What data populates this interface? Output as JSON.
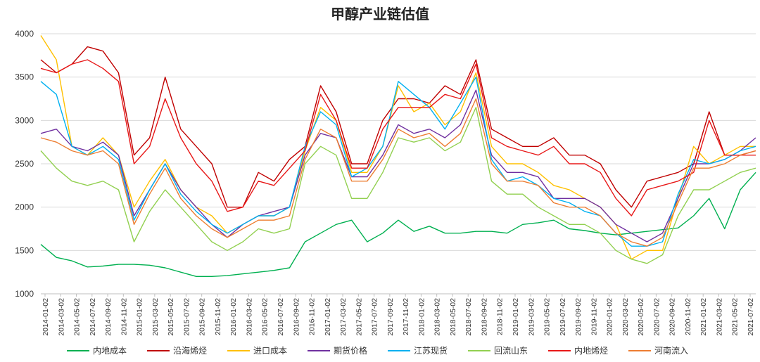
{
  "chart_data": {
    "type": "line",
    "title": "甲醇产业链估值",
    "xlabel": "",
    "ylabel": "",
    "ylim": [
      1000,
      4000
    ],
    "yticks": [
      1000,
      1500,
      2000,
      2500,
      3000,
      3500,
      4000
    ],
    "grid": "horizontal",
    "legend_position": "bottom",
    "xticks": [
      "2014-01-02",
      "2014-03-02",
      "2014-05-02",
      "2014-07-02",
      "2014-09-02",
      "2014-11-02",
      "2015-01-02",
      "2015-03-02",
      "2015-05-02",
      "2015-07-02",
      "2015-09-02",
      "2015-11-02",
      "2016-01-02",
      "2016-03-02",
      "2016-05-02",
      "2016-07-02",
      "2016-09-02",
      "2016-11-02",
      "2017-01-02",
      "2017-03-02",
      "2017-05-02",
      "2017-07-02",
      "2017-09-02",
      "2017-11-02",
      "2018-01-02",
      "2018-03-02",
      "2018-05-02",
      "2018-07-02",
      "2018-09-02",
      "2018-11-02",
      "2019-01-02",
      "2019-03-02",
      "2019-05-02",
      "2019-07-02",
      "2019-09-02",
      "2019-11-02",
      "2020-01-02",
      "2020-03-02",
      "2020-05-02",
      "2020-07-02",
      "2020-09-02",
      "2020-11-02",
      "2021-01-02",
      "2021-03-02",
      "2021-05-02",
      "2021-07-02"
    ],
    "x": [
      "2014-01",
      "2014-03",
      "2014-05",
      "2014-07",
      "2014-09",
      "2014-11",
      "2015-01",
      "2015-03",
      "2015-05",
      "2015-07",
      "2015-09",
      "2015-11",
      "2016-01",
      "2016-03",
      "2016-05",
      "2016-07",
      "2016-09",
      "2016-11",
      "2017-01",
      "2017-03",
      "2017-05",
      "2017-07",
      "2017-09",
      "2017-11",
      "2018-01",
      "2018-03",
      "2018-05",
      "2018-07",
      "2018-09",
      "2018-11",
      "2019-01",
      "2019-03",
      "2019-05",
      "2019-07",
      "2019-09",
      "2019-11",
      "2020-01",
      "2020-03",
      "2020-05",
      "2020-07",
      "2020-09",
      "2020-11",
      "2021-01",
      "2021-03",
      "2021-05",
      "2021-07",
      "2021-08"
    ],
    "series": [
      {
        "name": "内地成本",
        "color": "#00b050",
        "values": [
          1570,
          1420,
          1380,
          1310,
          1320,
          1340,
          1340,
          1330,
          1300,
          1250,
          1200,
          1200,
          1210,
          1230,
          1250,
          1270,
          1300,
          1600,
          1700,
          1800,
          1850,
          1600,
          1700,
          1850,
          1720,
          1780,
          1700,
          1700,
          1720,
          1720,
          1700,
          1800,
          1820,
          1850,
          1750,
          1730,
          1700,
          1680,
          1700,
          1720,
          1740,
          1760,
          1900,
          2100,
          1750,
          2200,
          2400
        ]
      },
      {
        "name": "沿海烯烃",
        "color": "#c00000",
        "values": [
          3700,
          3550,
          3650,
          3850,
          3800,
          3550,
          2600,
          2800,
          3500,
          2900,
          2700,
          2500,
          2000,
          2000,
          2400,
          2300,
          2550,
          2700,
          3400,
          3100,
          2500,
          2500,
          3000,
          3250,
          3250,
          3200,
          3400,
          3300,
          3700,
          2900,
          2800,
          2700,
          2700,
          2800,
          2600,
          2600,
          2500,
          2200,
          2000,
          2300,
          2350,
          2400,
          2500,
          3100,
          2600,
          2600,
          2650
        ]
      },
      {
        "name": "进口成本",
        "color": "#ffc000",
        "values": [
          3980,
          3700,
          2700,
          2600,
          2800,
          2600,
          2000,
          2300,
          2550,
          2200,
          2000,
          1900,
          1700,
          1800,
          1900,
          1900,
          2000,
          2650,
          3150,
          3000,
          2400,
          2400,
          2700,
          3400,
          3100,
          3200,
          2950,
          3100,
          3550,
          2700,
          2500,
          2500,
          2400,
          2250,
          2200,
          2100,
          2000,
          1800,
          1400,
          1500,
          1500,
          2100,
          2700,
          2500,
          2600,
          2700,
          2700
        ]
      },
      {
        "name": "期货价格",
        "color": "#7030a0",
        "values": [
          2850,
          2900,
          2700,
          2650,
          2750,
          2600,
          1900,
          2200,
          2500,
          2200,
          2000,
          1800,
          1650,
          1800,
          1900,
          1950,
          2000,
          2600,
          2850,
          2800,
          2350,
          2350,
          2600,
          2950,
          2850,
          2900,
          2800,
          2950,
          3350,
          2600,
          2400,
          2400,
          2350,
          2100,
          2100,
          2100,
          2000,
          1800,
          1700,
          1600,
          1700,
          2100,
          2500,
          2500,
          2550,
          2650,
          2800
        ]
      },
      {
        "name": "江苏现货",
        "color": "#00b0f0",
        "values": [
          3450,
          3300,
          2700,
          2600,
          2700,
          2550,
          1850,
          2200,
          2500,
          2150,
          1950,
          1800,
          1700,
          1800,
          1900,
          1900,
          2000,
          2700,
          3100,
          2950,
          2350,
          2450,
          2700,
          3450,
          3300,
          3150,
          2900,
          3200,
          3500,
          2550,
          2300,
          2350,
          2250,
          2100,
          2050,
          1950,
          1900,
          1700,
          1550,
          1550,
          1600,
          2150,
          2550,
          2500,
          2550,
          2650,
          2700
        ]
      },
      {
        "name": "回流山东",
        "color": "#92d050",
        "values": [
          2650,
          2450,
          2300,
          2250,
          2300,
          2200,
          1600,
          1950,
          2200,
          2000,
          1800,
          1600,
          1500,
          1600,
          1750,
          1700,
          1750,
          2500,
          2700,
          2600,
          2100,
          2100,
          2400,
          2800,
          2750,
          2800,
          2650,
          2750,
          3150,
          2300,
          2150,
          2150,
          2000,
          1900,
          1800,
          1800,
          1700,
          1500,
          1400,
          1350,
          1450,
          1900,
          2200,
          2200,
          2300,
          2400,
          2450
        ]
      },
      {
        "name": "内地烯烃",
        "color": "#e81818",
        "values": [
          3600,
          3550,
          3650,
          3700,
          3600,
          3450,
          2500,
          2700,
          3250,
          2800,
          2500,
          2300,
          1950,
          2000,
          2300,
          2250,
          2450,
          2650,
          3300,
          3000,
          2450,
          2450,
          2900,
          3150,
          3150,
          3150,
          3300,
          3250,
          3650,
          2800,
          2700,
          2650,
          2600,
          2700,
          2500,
          2500,
          2400,
          2100,
          1900,
          2200,
          2250,
          2300,
          2400,
          3000,
          2600,
          2600,
          2600
        ]
      },
      {
        "name": "河南流入",
        "color": "#ed7d31",
        "values": [
          2800,
          2750,
          2650,
          2600,
          2650,
          2500,
          1800,
          2150,
          2450,
          2100,
          1900,
          1750,
          1650,
          1750,
          1850,
          1850,
          1900,
          2550,
          2900,
          2800,
          2300,
          2300,
          2550,
          2900,
          2800,
          2850,
          2700,
          2850,
          3250,
          2500,
          2300,
          2300,
          2250,
          2050,
          2000,
          2000,
          1900,
          1700,
          1600,
          1550,
          1650,
          2050,
          2450,
          2450,
          2500,
          2600,
          2650
        ]
      }
    ]
  }
}
